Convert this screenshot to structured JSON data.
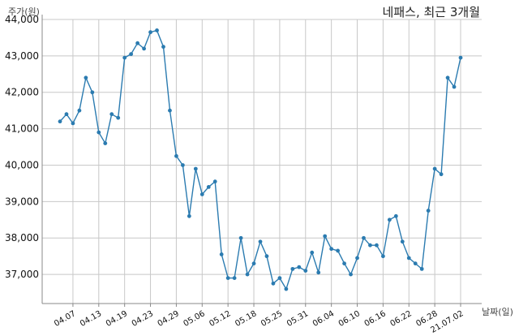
{
  "chart_data": {
    "type": "line",
    "title": "네패스, 최근 3개월",
    "ylabel": "주가(원)",
    "xlabel": "날짜(일)",
    "ylim": [
      36200,
      44000
    ],
    "yticks": [
      37000,
      38000,
      39000,
      40000,
      41000,
      42000,
      43000,
      44000
    ],
    "ytick_labels": [
      "37,000",
      "38,000",
      "39,000",
      "40,000",
      "41,000",
      "42,000",
      "43,000",
      "44,000"
    ],
    "xtick_labels": [
      "04.07",
      "04.13",
      "04.19",
      "04.23",
      "04.29",
      "05.06",
      "05.12",
      "05.18",
      "05.25",
      "05.31",
      "06.04",
      "06.10",
      "06.16",
      "06.22",
      "06.28",
      "21.07.02"
    ],
    "xtick_index": [
      2,
      6,
      10,
      14,
      18,
      22,
      26,
      30,
      34,
      38,
      42,
      46,
      50,
      54,
      58,
      62
    ],
    "grid": true,
    "color": "#2b7bb0",
    "series": [
      {
        "values": [
          41200,
          41400,
          41150,
          41500,
          42400,
          42000,
          40900,
          40600,
          41400,
          41300,
          42950,
          43050,
          43350,
          43200,
          43650,
          43700,
          43250,
          41500,
          40250,
          40000,
          38600,
          39900,
          39200,
          39400,
          39550,
          37550,
          36900,
          36900,
          38000,
          37000,
          37300,
          37900,
          37500,
          36750,
          36900,
          36600,
          37150,
          37200,
          37100,
          37600,
          37050,
          38050,
          37700,
          37650,
          37300,
          37000,
          37450,
          38000,
          37800,
          37800,
          37500,
          38500,
          38600,
          37900,
          37450,
          37300,
          37150,
          38750,
          39900,
          39750,
          42400,
          42150,
          42950
        ]
      }
    ]
  }
}
